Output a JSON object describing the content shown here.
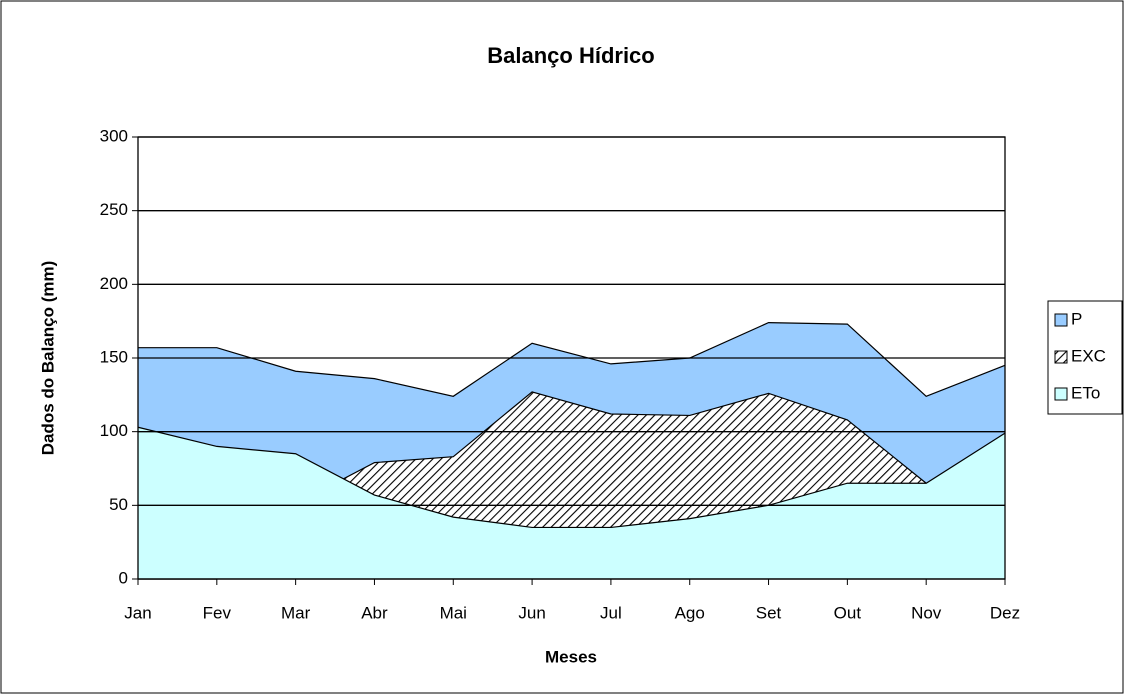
{
  "chart_data": {
    "type": "area",
    "title": "Balanço Hídrico",
    "x_label": "Meses",
    "y_label": "Dados do Balanço (mm)",
    "categories": [
      "Jan",
      "Fev",
      "Mar",
      "Abr",
      "Mai",
      "Jun",
      "Jul",
      "Ago",
      "Set",
      "Out",
      "Nov",
      "Dez"
    ],
    "series": [
      {
        "name": "P",
        "color": "#99ccff",
        "values": [
          157,
          157,
          141,
          136,
          124,
          160,
          146,
          150,
          174,
          173,
          124,
          145
        ]
      },
      {
        "name": "EXC",
        "color": "hatch",
        "values": [
          0,
          0,
          51,
          79,
          83,
          127,
          112,
          111,
          126,
          108,
          65,
          0
        ]
      },
      {
        "name": "ETo",
        "color": "#ccffff",
        "values": [
          103,
          90,
          85,
          57,
          42,
          35,
          35,
          41,
          50,
          65,
          65,
          99
        ]
      }
    ],
    "ylim": [
      0,
      300
    ],
    "yticks": [
      0,
      50,
      100,
      150,
      200,
      250,
      300
    ],
    "grid": true,
    "legend": "right"
  }
}
